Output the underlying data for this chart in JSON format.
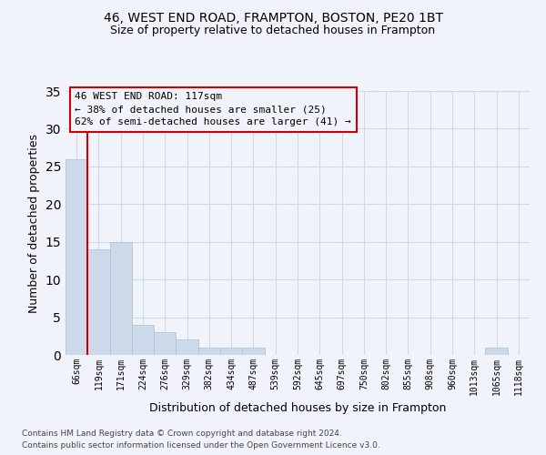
{
  "title1": "46, WEST END ROAD, FRAMPTON, BOSTON, PE20 1BT",
  "title2": "Size of property relative to detached houses in Frampton",
  "xlabel": "Distribution of detached houses by size in Frampton",
  "ylabel": "Number of detached properties",
  "categories": [
    "66sqm",
    "119sqm",
    "171sqm",
    "224sqm",
    "276sqm",
    "329sqm",
    "382sqm",
    "434sqm",
    "487sqm",
    "539sqm",
    "592sqm",
    "645sqm",
    "697sqm",
    "750sqm",
    "802sqm",
    "855sqm",
    "908sqm",
    "960sqm",
    "1013sqm",
    "1065sqm",
    "1118sqm"
  ],
  "values": [
    26,
    14,
    15,
    4,
    3,
    2,
    1,
    1,
    1,
    0,
    0,
    0,
    0,
    0,
    0,
    0,
    0,
    0,
    0,
    1,
    0
  ],
  "bar_color": "#ccd9e8",
  "bar_edge_color": "#a8bfd0",
  "grid_color": "#d0d8e8",
  "vline_color": "#cc0000",
  "vline_index": 1,
  "annotation_text": "46 WEST END ROAD: 117sqm\n← 38% of detached houses are smaller (25)\n62% of semi-detached houses are larger (41) →",
  "annotation_box_color": "#cc0000",
  "ylim": [
    0,
    35
  ],
  "yticks": [
    0,
    5,
    10,
    15,
    20,
    25,
    30,
    35
  ],
  "footer1": "Contains HM Land Registry data © Crown copyright and database right 2024.",
  "footer2": "Contains public sector information licensed under the Open Government Licence v3.0.",
  "bg_color": "#f0f4fa",
  "title1_fontsize": 10,
  "title2_fontsize": 9,
  "ylabel_fontsize": 9,
  "xlabel_fontsize": 9,
  "tick_fontsize": 7,
  "ann_fontsize": 8,
  "footer_fontsize": 6.5
}
